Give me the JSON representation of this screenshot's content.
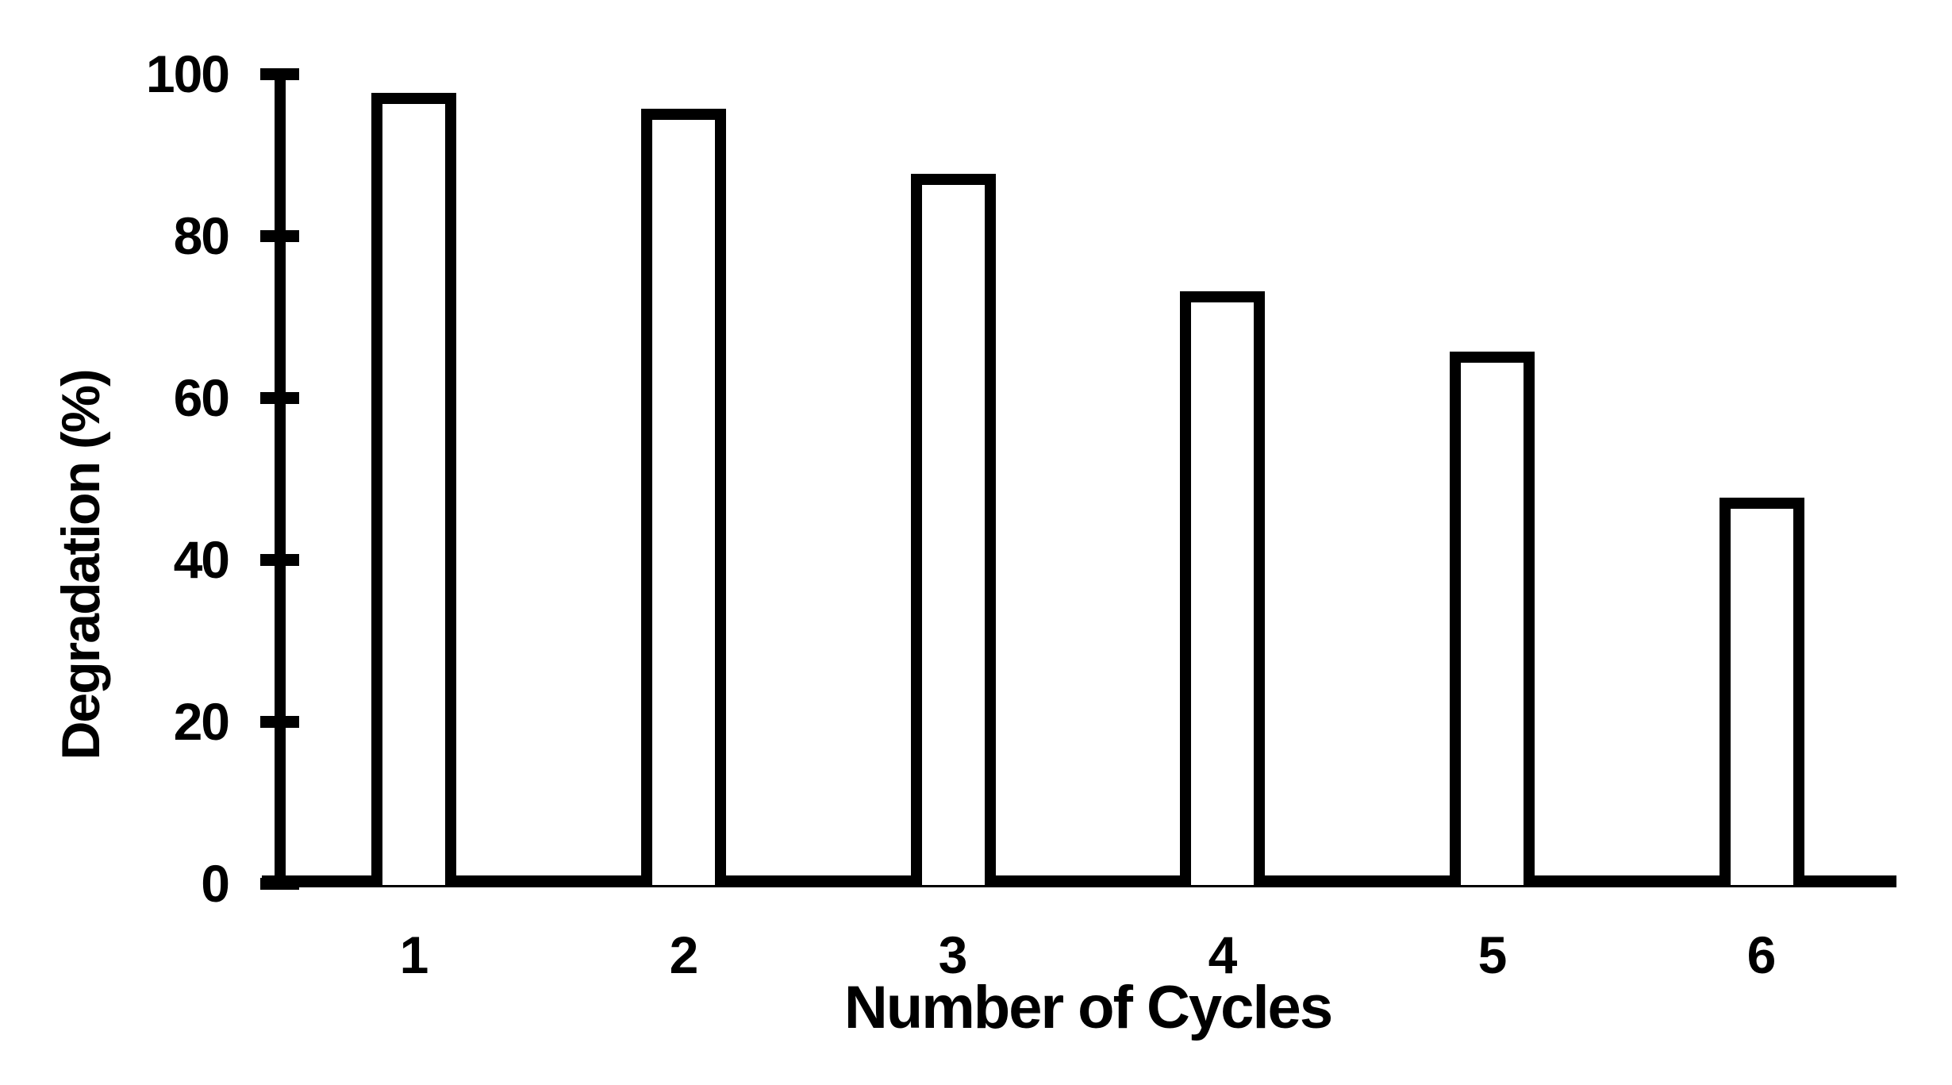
{
  "figure": {
    "background_color": "#ffffff",
    "ink_color": "#000000"
  },
  "chart_data": {
    "type": "bar",
    "title": "",
    "categories": [
      "1",
      "2",
      "3",
      "4",
      "5",
      "6"
    ],
    "values": [
      97,
      95,
      87,
      72.5,
      65,
      47
    ],
    "xlabel": "Number of Cycles",
    "ylabel": "Degradation (%)",
    "ylim": [
      0,
      100
    ],
    "yticks": [
      0,
      20,
      40,
      60,
      80,
      100
    ],
    "grid": false,
    "legend": false,
    "bar_fill": "#ffffff",
    "bar_outline": "#000000"
  }
}
